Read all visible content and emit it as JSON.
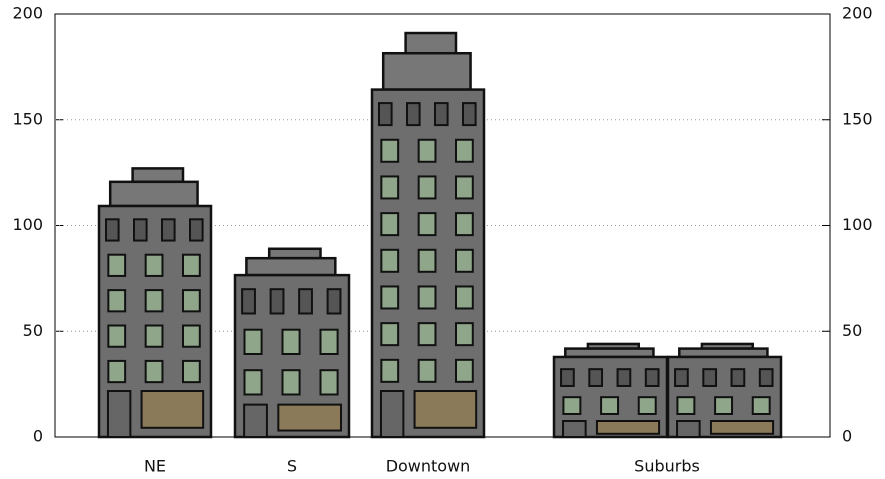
{
  "chart_data": {
    "type": "pictorial-bar",
    "categories": [
      "NE",
      "S",
      "Downtown",
      "Suburbs"
    ],
    "values": [
      127,
      89,
      191,
      44
    ],
    "color": "#6e6e6e",
    "ylim": [
      0,
      200
    ],
    "yticks": [
      0,
      50,
      100,
      150,
      200
    ],
    "y2lim": [
      0,
      200
    ],
    "y2ticks": [
      0,
      50,
      100,
      150,
      200
    ],
    "grid": true
  }
}
